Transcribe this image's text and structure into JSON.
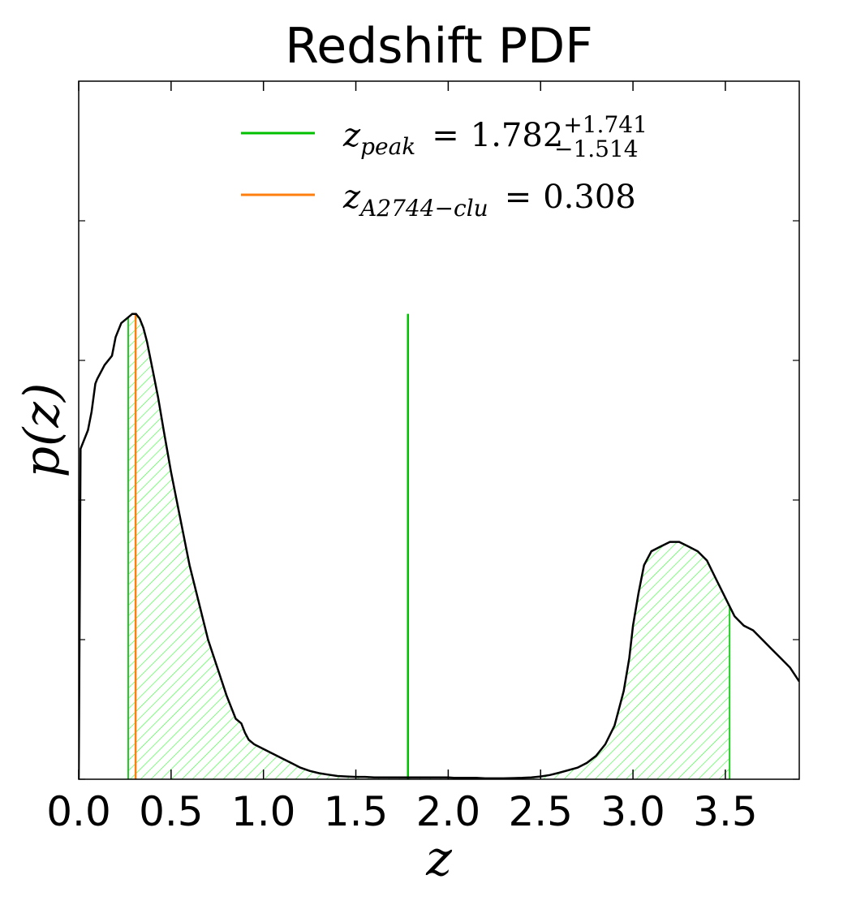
{
  "chart_data": {
    "type": "line",
    "title": "Redshift PDF",
    "xlabel": "z",
    "ylabel": "p(z)",
    "xlim": [
      0.0,
      3.9
    ],
    "ylim": [
      0.0,
      1.5
    ],
    "x_ticks": [
      "0.0",
      "0.5",
      "1.0",
      "1.5",
      "2.0",
      "2.5",
      "3.0",
      "3.5"
    ],
    "y_ticks_unlabeled": [
      0.0,
      0.3,
      0.6,
      0.9,
      1.2
    ],
    "series": [
      {
        "name": "p(z)",
        "color": "#000000",
        "x": [
          0.0,
          0.01,
          0.05,
          0.07,
          0.09,
          0.1,
          0.14,
          0.18,
          0.2,
          0.23,
          0.26,
          0.29,
          0.31,
          0.33,
          0.35,
          0.37,
          0.4,
          0.43,
          0.46,
          0.5,
          0.55,
          0.6,
          0.65,
          0.7,
          0.75,
          0.8,
          0.85,
          0.88,
          0.9,
          0.92,
          0.95,
          1.0,
          1.05,
          1.1,
          1.15,
          1.2,
          1.25,
          1.3,
          1.35,
          1.4,
          1.45,
          1.5,
          1.55,
          1.6,
          1.7,
          1.78,
          1.85,
          1.9,
          1.95,
          2.0,
          2.03,
          2.05,
          2.1,
          2.15,
          2.2,
          2.3,
          2.4,
          2.45,
          2.5,
          2.55,
          2.6,
          2.7,
          2.75,
          2.8,
          2.85,
          2.9,
          2.95,
          2.98,
          3.0,
          3.03,
          3.06,
          3.1,
          3.15,
          3.2,
          3.25,
          3.3,
          3.35,
          3.4,
          3.45,
          3.5,
          3.55,
          3.6,
          3.65,
          3.7,
          3.75,
          3.8,
          3.85,
          3.9
        ],
        "y": [
          0.0,
          0.71,
          0.75,
          0.79,
          0.85,
          0.86,
          0.89,
          0.91,
          0.95,
          0.98,
          0.99,
          1.0,
          1.0,
          0.99,
          0.97,
          0.94,
          0.88,
          0.82,
          0.75,
          0.66,
          0.56,
          0.46,
          0.38,
          0.3,
          0.24,
          0.18,
          0.13,
          0.12,
          0.1,
          0.085,
          0.075,
          0.065,
          0.055,
          0.045,
          0.035,
          0.025,
          0.018,
          0.013,
          0.01,
          0.007,
          0.006,
          0.005,
          0.005,
          0.004,
          0.004,
          0.004,
          0.004,
          0.004,
          0.004,
          0.004,
          0.003,
          0.003,
          0.003,
          0.003,
          0.002,
          0.002,
          0.003,
          0.004,
          0.006,
          0.009,
          0.014,
          0.025,
          0.035,
          0.05,
          0.075,
          0.115,
          0.19,
          0.26,
          0.33,
          0.4,
          0.46,
          0.49,
          0.5,
          0.51,
          0.51,
          0.5,
          0.49,
          0.47,
          0.43,
          0.39,
          0.35,
          0.33,
          0.32,
          0.3,
          0.28,
          0.26,
          0.24,
          0.21
        ]
      }
    ],
    "lines": [
      {
        "name": "z_peak",
        "x": 1.782,
        "height": 1.0,
        "color": "#00c000"
      },
      {
        "name": "z_A2744-clu",
        "x": 0.308,
        "height": 1.0,
        "color": "#ff7f0e"
      }
    ],
    "shaded_region": {
      "x_start": 0.268,
      "x_end": 3.523,
      "color": "#33ff33",
      "style": "hatch"
    },
    "legend": {
      "location": "upper center",
      "items": [
        {
          "symbol": "z",
          "subscript": "peak",
          "equals": "=",
          "value": "1.782",
          "sup": "+1.741",
          "sub": "−1.514",
          "color": "#00c000"
        },
        {
          "symbol": "z",
          "subscript": "A2744−clu",
          "equals": "=",
          "value": "0.308",
          "color": "#ff7f0e"
        }
      ]
    }
  }
}
